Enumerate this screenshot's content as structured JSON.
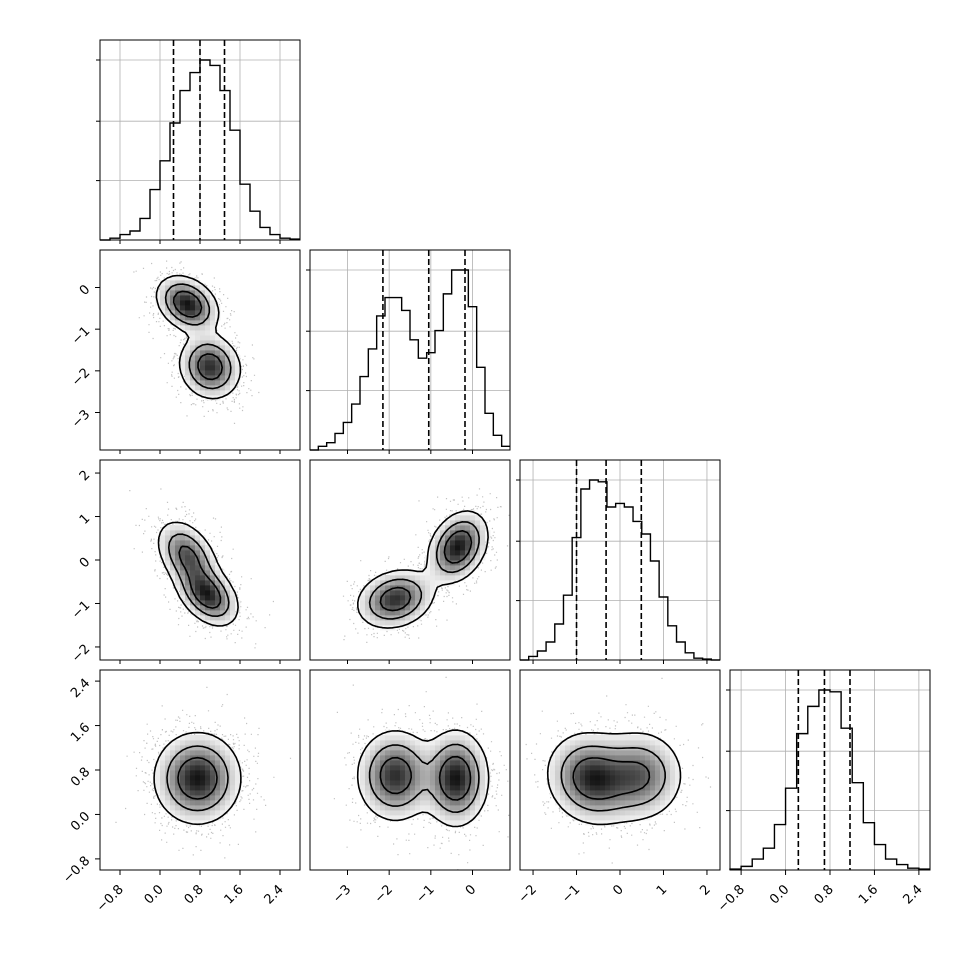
{
  "chart_data": {
    "type": "corner",
    "grid": true,
    "quantile_lines": "dashed",
    "tick_labels": {
      "p0": [
        "−0.8",
        "0.0",
        "0.8",
        "1.6",
        "2.4"
      ],
      "p1": [
        "−3",
        "−2",
        "−1",
        "0"
      ],
      "p2": [
        "−2",
        "−1",
        "0",
        "1",
        "2"
      ],
      "p3": [
        "−0.8",
        "0.0",
        "0.8",
        "1.6",
        "2.4"
      ]
    },
    "parameters": [
      {
        "index": 0,
        "range": [
          -1.2,
          2.8
        ],
        "ticks": [
          -0.8,
          0.0,
          0.8,
          1.6,
          2.4
        ],
        "quantiles": [
          0.27,
          0.8,
          1.29
        ],
        "hist": {
          "edges": [
            -1.2,
            -1.0,
            -0.8,
            -0.6,
            -0.4,
            -0.2,
            0.0,
            0.2,
            0.4,
            0.6,
            0.8,
            1.0,
            1.2,
            1.4,
            1.6,
            1.8,
            2.0,
            2.2,
            2.4,
            2.6,
            2.8
          ],
          "counts": [
            0,
            0.01,
            0.03,
            0.05,
            0.12,
            0.28,
            0.44,
            0.65,
            0.83,
            0.93,
            1.0,
            0.97,
            0.83,
            0.61,
            0.31,
            0.16,
            0.07,
            0.03,
            0.01,
            0.005
          ]
        }
      },
      {
        "index": 1,
        "range": [
          -3.9,
          0.9
        ],
        "ticks": [
          -3,
          -2,
          -1,
          0
        ],
        "quantiles": [
          -2.15,
          -1.05,
          -0.18
        ],
        "hist": {
          "edges": [
            -3.9,
            -3.7,
            -3.5,
            -3.3,
            -3.1,
            -2.9,
            -2.7,
            -2.5,
            -2.3,
            -2.1,
            -1.9,
            -1.7,
            -1.5,
            -1.3,
            -1.1,
            -0.9,
            -0.7,
            -0.5,
            -0.3,
            -0.1,
            0.1,
            0.3,
            0.5,
            0.7,
            0.9
          ],
          "counts": [
            0,
            0.02,
            0.04,
            0.09,
            0.15,
            0.25,
            0.4,
            0.55,
            0.73,
            0.83,
            0.83,
            0.76,
            0.6,
            0.5,
            0.53,
            0.65,
            0.85,
            0.98,
            0.98,
            0.78,
            0.45,
            0.2,
            0.08,
            0.02
          ]
        }
      },
      {
        "index": 2,
        "range": [
          -2.3,
          2.3
        ],
        "ticks": [
          -2,
          -1,
          0,
          1,
          2
        ],
        "quantiles": [
          -1.0,
          -0.32,
          0.49
        ],
        "hist": {
          "edges": [
            -2.3,
            -2.1,
            -1.9,
            -1.7,
            -1.5,
            -1.3,
            -1.1,
            -0.9,
            -0.7,
            -0.5,
            -0.3,
            -0.1,
            0.1,
            0.3,
            0.5,
            0.7,
            0.9,
            1.1,
            1.3,
            1.5,
            1.7,
            1.9,
            2.1,
            2.3
          ],
          "counts": [
            0,
            0.02,
            0.05,
            0.1,
            0.2,
            0.36,
            0.68,
            0.95,
            1.0,
            0.99,
            0.85,
            0.87,
            0.85,
            0.77,
            0.7,
            0.55,
            0.35,
            0.19,
            0.1,
            0.04,
            0.01,
            0.005,
            0
          ]
        }
      },
      {
        "index": 3,
        "range": [
          -1.0,
          2.6
        ],
        "ticks": [
          -0.8,
          0.0,
          0.8,
          1.6,
          2.4
        ],
        "quantiles": [
          0.23,
          0.7,
          1.16
        ],
        "hist": {
          "edges": [
            -1.0,
            -0.8,
            -0.6,
            -0.4,
            -0.2,
            0.0,
            0.2,
            0.4,
            0.6,
            0.8,
            1.0,
            1.2,
            1.4,
            1.6,
            1.8,
            2.0,
            2.2,
            2.4,
            2.6
          ],
          "counts": [
            0.005,
            0.02,
            0.06,
            0.12,
            0.25,
            0.45,
            0.75,
            0.9,
            0.99,
            0.98,
            0.78,
            0.48,
            0.26,
            0.14,
            0.06,
            0.03,
            0.01,
            0.005
          ]
        }
      }
    ],
    "pairs": [
      {
        "x": 0,
        "y": 1,
        "modes": [
          {
            "mx": 0.55,
            "my": -0.4,
            "sx": 0.3,
            "sy": 0.33,
            "rho": -0.3,
            "w": 1.0
          },
          {
            "mx": 1.0,
            "my": -1.9,
            "sx": 0.3,
            "sy": 0.38,
            "rho": -0.1,
            "w": 0.9
          }
        ]
      },
      {
        "x": 0,
        "y": 2,
        "modes": [
          {
            "mx": 0.55,
            "my": 0.1,
            "sx": 0.3,
            "sy": 0.4,
            "rho": -0.4,
            "w": 0.8
          },
          {
            "mx": 0.95,
            "my": -0.8,
            "sx": 0.3,
            "sy": 0.35,
            "rho": -0.4,
            "w": 1.0
          }
        ]
      },
      {
        "x": 0,
        "y": 3,
        "modes": [
          {
            "mx": 0.75,
            "my": 0.65,
            "sx": 0.42,
            "sy": 0.4,
            "rho": 0.0,
            "w": 1.0
          }
        ]
      },
      {
        "x": 1,
        "y": 2,
        "modes": [
          {
            "mx": -1.85,
            "my": -0.9,
            "sx": 0.45,
            "sy": 0.33,
            "rho": 0.2,
            "w": 0.9
          },
          {
            "mx": -0.35,
            "my": 0.3,
            "sx": 0.35,
            "sy": 0.4,
            "rho": 0.3,
            "w": 1.0
          }
        ]
      },
      {
        "x": 1,
        "y": 3,
        "modes": [
          {
            "mx": -1.85,
            "my": 0.7,
            "sx": 0.45,
            "sy": 0.4,
            "rho": 0.0,
            "w": 0.9
          },
          {
            "mx": -0.4,
            "my": 0.65,
            "sx": 0.38,
            "sy": 0.42,
            "rho": 0.0,
            "w": 1.0
          }
        ]
      },
      {
        "x": 2,
        "y": 3,
        "modes": [
          {
            "mx": -0.65,
            "my": 0.65,
            "sx": 0.5,
            "sy": 0.4,
            "rho": -0.1,
            "w": 1.0
          },
          {
            "mx": 0.45,
            "my": 0.7,
            "sx": 0.5,
            "sy": 0.4,
            "rho": 0.0,
            "w": 0.75
          }
        ]
      }
    ]
  }
}
